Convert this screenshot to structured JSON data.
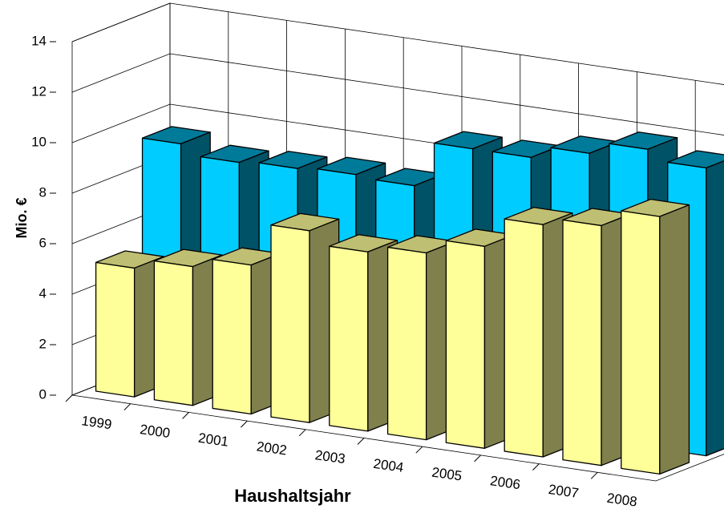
{
  "chart_data": {
    "type": "bar3d",
    "categories": [
      "1999",
      "2000",
      "2001",
      "2002",
      "2003",
      "2004",
      "2005",
      "2006",
      "2007",
      "2008"
    ],
    "series": [
      {
        "color": "#00ccff",
        "values": [
          9.3,
          8.9,
          9.0,
          9.1,
          9.0,
          10.8,
          10.8,
          11.3,
          11.8,
          11.4
        ]
      },
      {
        "color": "#ffff99",
        "values": [
          5.1,
          5.5,
          5.9,
          7.6,
          7.1,
          7.4,
          8.0,
          9.2,
          9.5,
          10.2
        ]
      }
    ],
    "y_label": "Mio. €",
    "x_label": "Haushaltsjahr",
    "ylim": [
      0,
      14
    ],
    "yticks": [
      0,
      2,
      4,
      6,
      8,
      10,
      12,
      14
    ],
    "grid": true
  }
}
